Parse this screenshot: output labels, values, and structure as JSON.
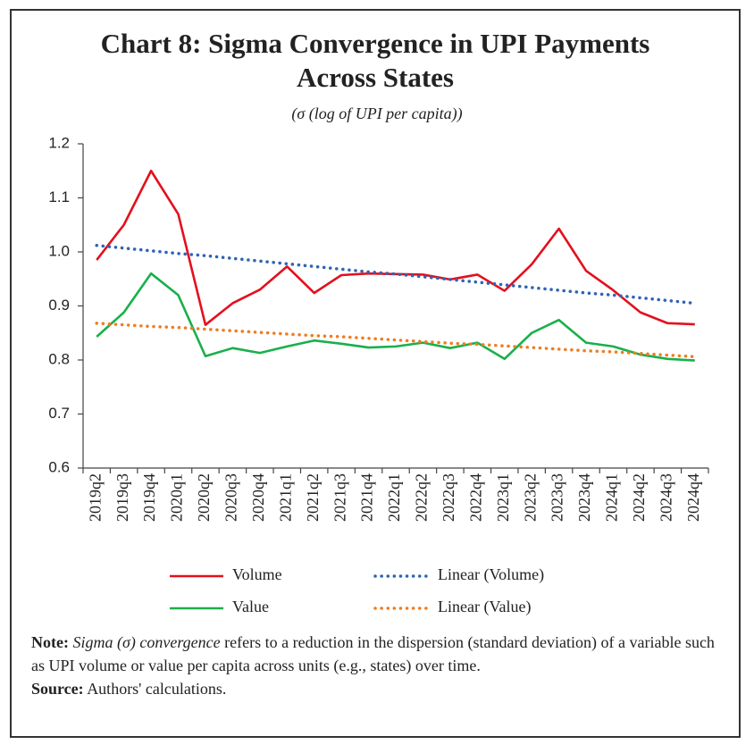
{
  "chart_data": {
    "type": "line",
    "title": "Chart 8: Sigma Convergence in UPI Payments Across States",
    "subtitle": "(σ (log of UPI per capita))",
    "categories": [
      "2019q2",
      "2019q3",
      "2019q4",
      "2020q1",
      "2020q2",
      "2020q3",
      "2020q4",
      "2021q1",
      "2021q2",
      "2021q3",
      "2021q4",
      "2022q1",
      "2022q2",
      "2022q3",
      "2022q4",
      "2023q1",
      "2023q2",
      "2023q3",
      "2023q4",
      "2024q1",
      "2024q2",
      "2024q3",
      "2024q4"
    ],
    "series": [
      {
        "name": "Volume",
        "color": "#e3101e",
        "style": "solid",
        "values": [
          0.985,
          1.05,
          1.15,
          1.07,
          0.865,
          0.905,
          0.93,
          0.973,
          0.924,
          0.957,
          0.96,
          0.959,
          0.958,
          0.949,
          0.958,
          0.928,
          0.977,
          1.043,
          0.965,
          0.929,
          0.888,
          0.868,
          0.866
        ]
      },
      {
        "name": "Linear (Volume)",
        "color": "#2e64b5",
        "style": "dotted",
        "values": [
          1.012,
          1.007,
          1.002,
          0.997,
          0.993,
          0.988,
          0.983,
          0.978,
          0.973,
          0.968,
          0.963,
          0.959,
          0.954,
          0.949,
          0.944,
          0.939,
          0.934,
          0.929,
          0.924,
          0.92,
          0.915,
          0.91,
          0.905
        ]
      },
      {
        "name": "Value",
        "color": "#19b04a",
        "style": "solid",
        "values": [
          0.843,
          0.888,
          0.96,
          0.92,
          0.807,
          0.822,
          0.813,
          0.825,
          0.836,
          0.83,
          0.823,
          0.825,
          0.832,
          0.822,
          0.832,
          0.802,
          0.85,
          0.874,
          0.832,
          0.825,
          0.81,
          0.802,
          0.799
        ]
      },
      {
        "name": "Linear (Value)",
        "color": "#ee7d22",
        "style": "dotted",
        "values": [
          0.868,
          0.865,
          0.862,
          0.86,
          0.857,
          0.854,
          0.851,
          0.848,
          0.845,
          0.843,
          0.84,
          0.837,
          0.834,
          0.831,
          0.829,
          0.826,
          0.823,
          0.82,
          0.817,
          0.815,
          0.812,
          0.809,
          0.806
        ]
      }
    ],
    "ylim": [
      0.6,
      1.2
    ],
    "yticks": [
      {
        "value": 0.6,
        "label": "0.6"
      },
      {
        "value": 0.7,
        "label": "0.7"
      },
      {
        "value": 0.8,
        "label": "0.8"
      },
      {
        "value": 0.9,
        "label": "0.9"
      },
      {
        "value": 1.0,
        "label": "1.0"
      },
      {
        "value": 1.1,
        "label": "1.1"
      },
      {
        "value": 1.2,
        "label": "1.2"
      }
    ],
    "grid": false,
    "legend": "bottom"
  },
  "note": {
    "label": "Note:",
    "term": "Sigma (σ) convergence",
    "text": "refers to a reduction in the dispersion (standard deviation) of a variable such as UPI volume or value per capita across units (e.g., states) over time."
  },
  "source": {
    "label": "Source:",
    "text": "Authors' calculations."
  }
}
